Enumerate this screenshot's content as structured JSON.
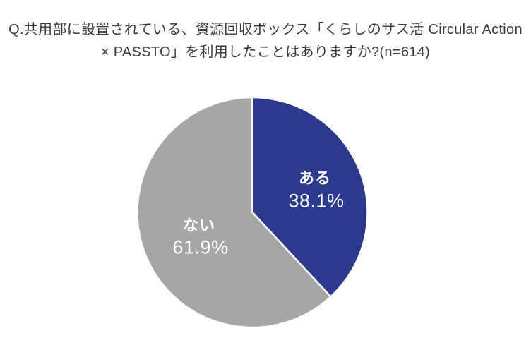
{
  "title": {
    "line1": "Q.共用部に設置されている、資源回収ボックス「くらしのサス活 Circular Action",
    "line2": "× PASSTO」を利用したことはありますか?(n=614)"
  },
  "chart_data": {
    "type": "pie",
    "sample_size_label": "n=614",
    "start_angle_deg": 0,
    "direction": "clockwise",
    "legend_position": "inside-slices",
    "label_color": "#FFFFFF",
    "divider_color": "#FFFFFF",
    "slices": [
      {
        "label": "ある",
        "value": 38.1,
        "display": "38.1%",
        "color": "#2B3A8D"
      },
      {
        "label": "ない",
        "value": 61.9,
        "display": "61.9%",
        "color": "#A6A6A6"
      }
    ]
  }
}
